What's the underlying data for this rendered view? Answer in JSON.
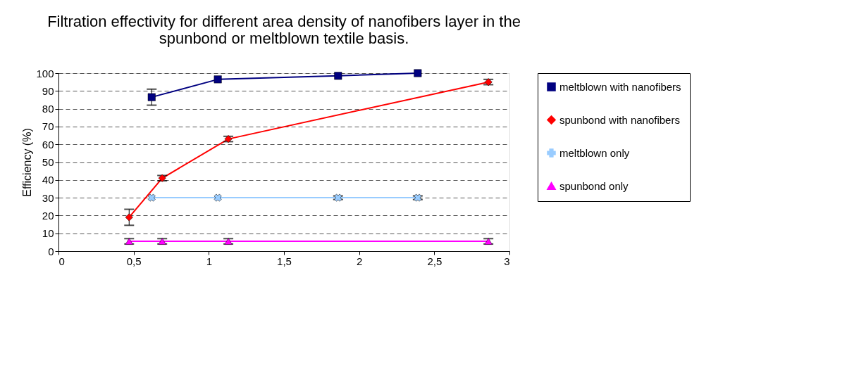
{
  "chart_data": {
    "type": "line",
    "title": "Filtration effectivity for different area density of nanofibers layer in the spunbond or meltblown textile basis.",
    "ylabel": "Efficiency (%)",
    "xlim": [
      0,
      3
    ],
    "xticks": [
      0,
      {
        "value": 0.5,
        "label": "0,5"
      },
      1,
      {
        "value": 1.5,
        "label": "1,5"
      },
      2,
      {
        "value": 2.5,
        "label": "2,5"
      },
      3
    ],
    "ylim": [
      0,
      100
    ],
    "yticks": [
      0,
      10,
      20,
      30,
      40,
      50,
      60,
      70,
      80,
      90,
      100
    ],
    "grid": "y",
    "legend": "right",
    "series": [
      {
        "name": "meltblown with nanofibers",
        "color": "#000080",
        "marker": "square",
        "x": [
          0.62,
          1.06,
          1.86,
          2.39
        ],
        "values": [
          86.5,
          96.5,
          98.5,
          100
        ],
        "errors": [
          4.5,
          null,
          null,
          null
        ]
      },
      {
        "name": "spunbond with nanofibers",
        "color": "#ff0000",
        "marker": "diamond",
        "x": [
          0.47,
          0.69,
          1.13,
          2.86
        ],
        "values": [
          19,
          41,
          63,
          95
        ],
        "errors": [
          4.5,
          1.5,
          1.5,
          1.5
        ]
      },
      {
        "name": "meltblown only",
        "color": "#99ccff",
        "marker": "cross",
        "x": [
          0.62,
          1.06,
          1.86,
          2.39
        ],
        "values": [
          30,
          30,
          30,
          30
        ],
        "errors": [
          null,
          null,
          1,
          1
        ]
      },
      {
        "name": "spunbond only",
        "color": "#ff00ff",
        "marker": "triangle",
        "x": [
          0.47,
          0.69,
          1.13,
          2.86
        ],
        "values": [
          5.5,
          5.5,
          5.5,
          5.5
        ],
        "errors": [
          1.5,
          1.5,
          1.5,
          1.5
        ]
      }
    ]
  }
}
